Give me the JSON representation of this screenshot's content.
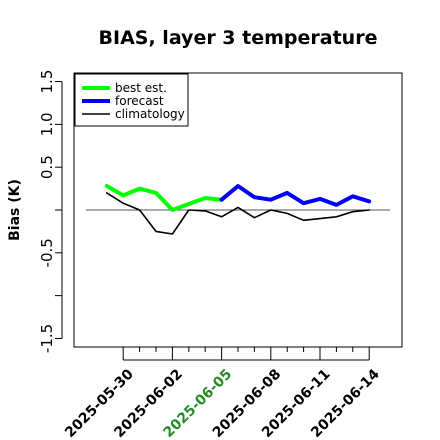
{
  "chart_data": {
    "type": "line",
    "title": "BIAS, layer 3 temperature",
    "xlabel": "",
    "ylabel": "Bias (K)",
    "xlim": [
      "2025-05-27",
      "2025-06-16"
    ],
    "ylim": [
      -1.6,
      1.6
    ],
    "yticks": [
      -1.5,
      -0.5,
      0.5,
      1.0,
      1.5
    ],
    "ytick_labels": [
      "-1.5",
      "-0.5",
      "0.5",
      "1.0",
      "1.5"
    ],
    "xticks": [
      "2025-05-30",
      "2025-06-02",
      "2025-06-05",
      "2025-06-08",
      "2025-06-11",
      "2025-06-14"
    ],
    "xtick_colors": [
      "#000000",
      "#000000",
      "#228B22",
      "#000000",
      "#000000",
      "#000000"
    ],
    "reference_line": 0,
    "grid": false,
    "legend_position": "top-left",
    "series": [
      {
        "name": "best est.",
        "color": "#00ff00",
        "style": "thick",
        "x": [
          "2025-05-29",
          "2025-05-30",
          "2025-05-31",
          "2025-06-01",
          "2025-06-02",
          "2025-06-03",
          "2025-06-04",
          "2025-06-05"
        ],
        "y": [
          0.28,
          0.17,
          0.25,
          0.2,
          0.0,
          0.07,
          0.14,
          0.12
        ]
      },
      {
        "name": "forecast",
        "color": "#0000ff",
        "style": "thick",
        "x": [
          "2025-06-05",
          "2025-06-06",
          "2025-06-07",
          "2025-06-08",
          "2025-06-09",
          "2025-06-10",
          "2025-06-11",
          "2025-06-12",
          "2025-06-13",
          "2025-06-14"
        ],
        "y": [
          0.12,
          0.28,
          0.15,
          0.12,
          0.2,
          0.08,
          0.13,
          0.06,
          0.16,
          0.1
        ]
      },
      {
        "name": "climatology",
        "color": "#000000",
        "style": "thin",
        "x": [
          "2025-05-29",
          "2025-05-30",
          "2025-05-31",
          "2025-06-01",
          "2025-06-02",
          "2025-06-03",
          "2025-06-04",
          "2025-06-05",
          "2025-06-06",
          "2025-06-07",
          "2025-06-08",
          "2025-06-09",
          "2025-06-10",
          "2025-06-11",
          "2025-06-12",
          "2025-06-13",
          "2025-06-14"
        ],
        "y": [
          0.2,
          0.08,
          0.0,
          -0.25,
          -0.28,
          0.0,
          -0.01,
          -0.08,
          0.03,
          -0.09,
          0.0,
          -0.04,
          -0.12,
          -0.1,
          -0.08,
          -0.02,
          0.0
        ]
      }
    ]
  }
}
